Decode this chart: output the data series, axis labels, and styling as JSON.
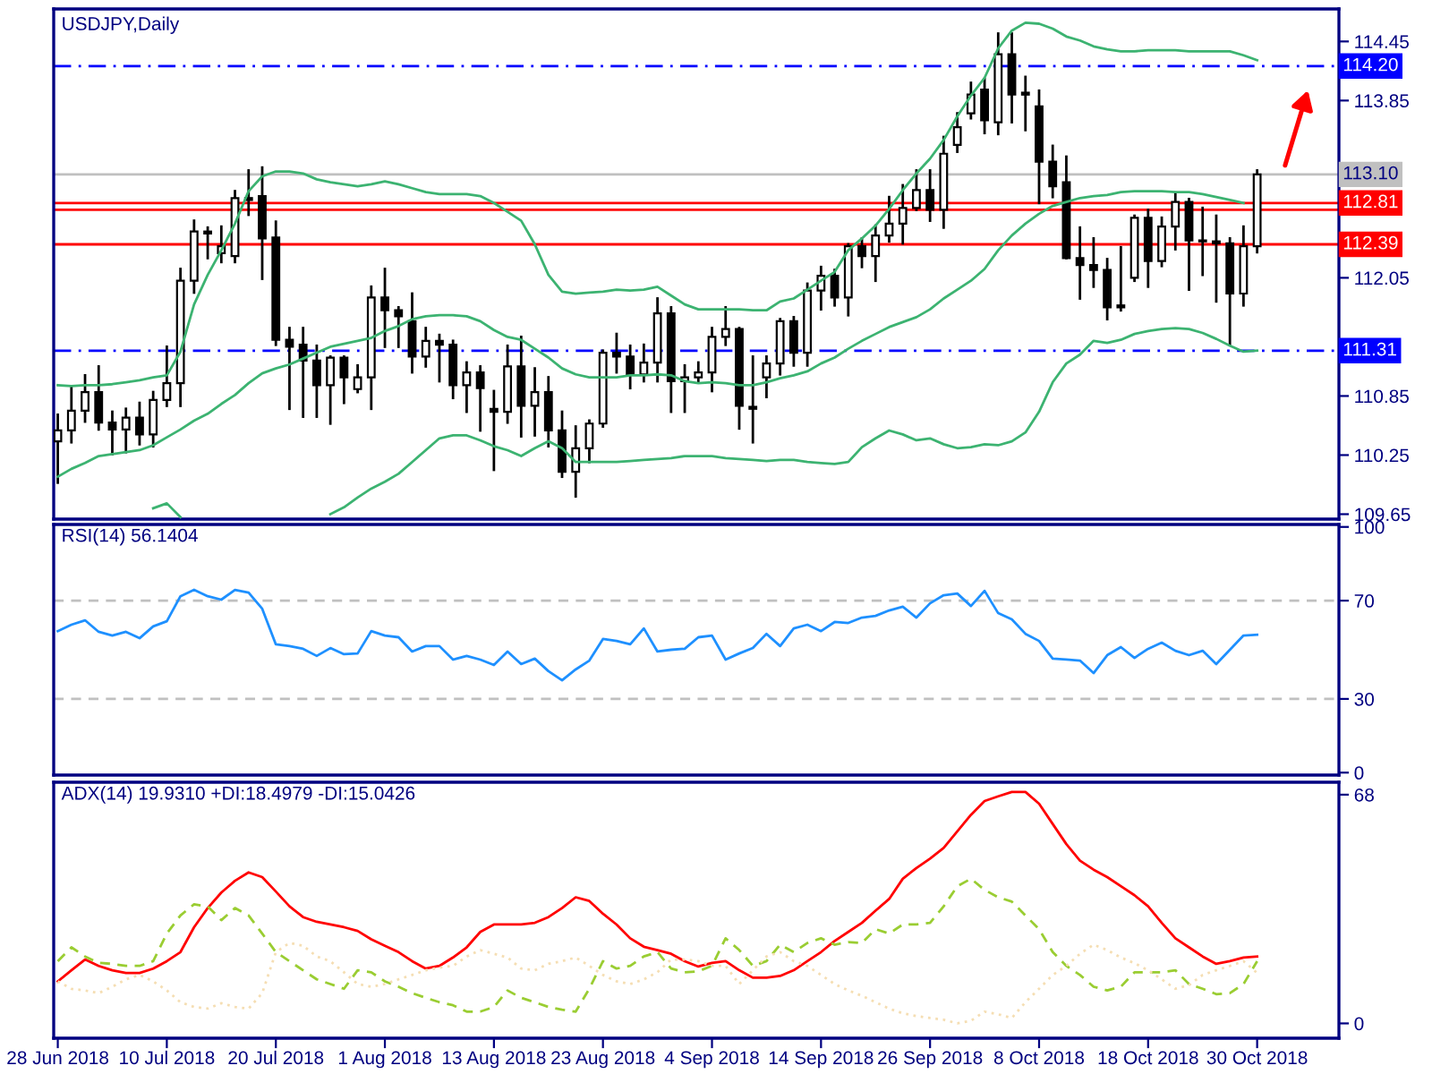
{
  "chart_data": [
    {
      "type": "candlestick",
      "title": "USDJPY,Daily",
      "ohlc": [
        [
          110.39,
          110.66,
          109.97,
          110.5
        ],
        [
          110.5,
          110.95,
          110.38,
          110.7
        ],
        [
          110.7,
          111.06,
          110.59,
          110.89
        ],
        [
          110.89,
          111.15,
          110.51,
          110.58
        ],
        [
          110.58,
          110.69,
          110.26,
          110.51
        ],
        [
          110.51,
          110.72,
          110.28,
          110.63
        ],
        [
          110.63,
          110.78,
          110.36,
          110.46
        ],
        [
          110.46,
          110.89,
          110.34,
          110.81
        ],
        [
          110.81,
          111.35,
          110.75,
          110.98
        ],
        [
          110.98,
          112.14,
          110.75,
          112.02
        ],
        [
          112.02,
          112.63,
          111.9,
          112.52
        ],
        [
          112.52,
          112.56,
          112.25,
          112.5
        ],
        [
          112.3,
          112.57,
          112.21,
          112.37
        ],
        [
          112.27,
          112.93,
          112.21,
          112.86
        ],
        [
          112.86,
          113.14,
          112.69,
          112.84
        ],
        [
          112.88,
          113.17,
          112.04,
          112.45
        ],
        [
          112.46,
          112.62,
          111.37,
          111.42
        ],
        [
          111.42,
          111.54,
          110.72,
          111.35
        ],
        [
          111.37,
          111.54,
          110.64,
          111.21
        ],
        [
          111.21,
          111.36,
          110.64,
          110.96
        ],
        [
          110.96,
          111.25,
          110.57,
          111.24
        ],
        [
          111.24,
          111.25,
          110.78,
          111.04
        ],
        [
          110.92,
          111.16,
          110.89,
          111.04
        ],
        [
          111.04,
          111.96,
          110.72,
          111.85
        ],
        [
          111.85,
          112.14,
          111.35,
          111.72
        ],
        [
          111.72,
          111.75,
          111.35,
          111.66
        ],
        [
          111.61,
          111.89,
          111.09,
          111.25
        ],
        [
          111.25,
          111.54,
          111.15,
          111.41
        ],
        [
          111.41,
          111.47,
          111.0,
          111.37
        ],
        [
          111.37,
          111.41,
          110.83,
          110.96
        ],
        [
          110.96,
          111.19,
          110.69,
          111.09
        ],
        [
          111.09,
          111.15,
          110.5,
          110.93
        ],
        [
          110.72,
          110.9,
          110.1,
          110.69
        ],
        [
          110.69,
          111.36,
          110.58,
          111.15
        ],
        [
          111.15,
          111.45,
          110.44,
          110.75
        ],
        [
          110.75,
          111.13,
          110.45,
          110.89
        ],
        [
          110.89,
          111.04,
          110.34,
          110.5
        ],
        [
          110.5,
          110.69,
          110.03,
          110.08
        ],
        [
          110.08,
          110.54,
          109.83,
          110.32
        ],
        [
          110.32,
          110.6,
          110.18,
          110.57
        ],
        [
          110.57,
          111.31,
          110.54,
          111.29
        ],
        [
          111.29,
          111.48,
          111.09,
          111.25
        ],
        [
          111.25,
          111.36,
          110.93,
          111.07
        ],
        [
          111.07,
          111.37,
          111.0,
          111.19
        ],
        [
          111.19,
          111.84,
          111.0,
          111.69
        ],
        [
          111.69,
          111.75,
          110.69,
          111.0
        ],
        [
          111.0,
          111.16,
          110.69,
          111.04
        ],
        [
          111.04,
          111.19,
          111.0,
          111.09
        ],
        [
          111.09,
          111.54,
          110.9,
          111.45
        ],
        [
          111.45,
          111.75,
          111.37,
          111.53
        ],
        [
          111.53,
          111.54,
          110.52,
          110.75
        ],
        [
          110.74,
          111.25,
          110.38,
          110.72
        ],
        [
          111.04,
          111.25,
          110.84,
          111.18
        ],
        [
          111.18,
          111.63,
          111.07,
          111.61
        ],
        [
          111.61,
          111.65,
          111.16,
          111.29
        ],
        [
          111.29,
          111.99,
          111.16,
          111.92
        ],
        [
          111.92,
          112.16,
          111.73,
          112.07
        ],
        [
          112.07,
          112.13,
          111.77,
          111.85
        ],
        [
          111.85,
          112.39,
          111.67,
          112.37
        ],
        [
          112.37,
          112.45,
          112.16,
          112.27
        ],
        [
          112.27,
          112.58,
          112.02,
          112.48
        ],
        [
          112.48,
          112.87,
          112.42,
          112.6
        ],
        [
          112.6,
          112.99,
          112.4,
          112.76
        ],
        [
          112.76,
          113.14,
          112.74,
          112.94
        ],
        [
          112.94,
          113.14,
          112.63,
          112.74
        ],
        [
          112.74,
          113.48,
          112.56,
          113.31
        ],
        [
          113.4,
          113.72,
          113.33,
          113.58
        ],
        [
          113.72,
          114.03,
          113.67,
          113.91
        ],
        [
          113.96,
          114.07,
          113.52,
          113.65
        ],
        [
          113.63,
          114.53,
          113.51,
          114.32
        ],
        [
          114.32,
          114.53,
          113.63,
          113.91
        ],
        [
          113.91,
          114.09,
          113.55,
          113.93
        ],
        [
          113.79,
          113.95,
          112.81,
          113.23
        ],
        [
          113.23,
          113.39,
          112.87,
          112.98
        ],
        [
          113.02,
          113.28,
          112.25,
          112.25
        ],
        [
          112.25,
          112.56,
          111.84,
          112.18
        ],
        [
          112.18,
          112.45,
          111.96,
          112.13
        ],
        [
          112.13,
          112.24,
          111.63,
          111.75
        ],
        [
          111.75,
          112.36,
          111.72,
          111.77
        ],
        [
          112.05,
          112.68,
          112.02,
          112.66
        ],
        [
          112.66,
          112.74,
          111.96,
          112.22
        ],
        [
          112.22,
          112.66,
          112.17,
          112.57
        ],
        [
          112.57,
          112.9,
          112.34,
          112.82
        ],
        [
          112.82,
          112.85,
          111.93,
          112.43
        ],
        [
          112.43,
          112.76,
          112.08,
          112.42
        ],
        [
          112.42,
          112.68,
          111.81,
          112.4
        ],
        [
          112.4,
          112.45,
          111.37,
          111.89
        ],
        [
          111.89,
          112.57,
          111.77,
          112.37
        ],
        [
          112.37,
          113.14,
          112.31,
          113.1
        ]
      ],
      "series": [
        {
          "type": "line",
          "color": "#3cb371",
          "values": [
            110.96,
            110.95,
            110.96,
            110.96,
            110.97,
            110.99,
            111.01,
            111.04,
            111.06,
            111.3,
            111.78,
            112.08,
            112.33,
            112.6,
            112.93,
            113.08,
            113.13,
            113.13,
            113.11,
            113.05,
            113.02,
            113.0,
            112.98,
            113.0,
            113.03,
            113.0,
            112.96,
            112.92,
            112.9,
            112.9,
            112.9,
            112.88,
            112.81,
            112.72,
            112.63,
            112.39,
            112.08,
            111.91,
            111.89,
            111.9,
            111.91,
            111.93,
            111.92,
            111.93,
            111.96,
            111.87,
            111.78,
            111.73,
            111.73,
            111.73,
            111.73,
            111.72,
            111.72,
            111.81,
            111.84,
            111.93,
            112.02,
            112.11,
            112.33,
            112.45,
            112.58,
            112.75,
            112.94,
            113.11,
            113.26,
            113.45,
            113.69,
            113.9,
            114.08,
            114.38,
            114.56,
            114.64,
            114.63,
            114.58,
            114.5,
            114.46,
            114.4,
            114.37,
            114.35,
            114.35,
            114.36,
            114.36,
            114.36,
            114.35,
            114.35,
            114.35,
            114.35,
            114.31,
            114.26
          ]
        },
        {
          "type": "line",
          "color": "#3cb371",
          "values": [
            110.03,
            110.11,
            110.17,
            110.24,
            110.26,
            110.28,
            110.3,
            110.35,
            110.43,
            110.51,
            110.6,
            110.67,
            110.77,
            110.86,
            110.98,
            111.08,
            111.13,
            111.17,
            111.23,
            111.29,
            111.35,
            111.38,
            111.41,
            111.44,
            111.51,
            111.56,
            111.63,
            111.66,
            111.67,
            111.67,
            111.66,
            111.61,
            111.52,
            111.45,
            111.42,
            111.33,
            111.24,
            111.13,
            111.07,
            111.04,
            111.04,
            111.04,
            111.06,
            111.06,
            111.07,
            111.06,
            111.0,
            110.98,
            110.99,
            110.98,
            110.96,
            110.96,
            110.99,
            111.03,
            111.06,
            111.1,
            111.18,
            111.24,
            111.33,
            111.41,
            111.48,
            111.55,
            111.6,
            111.65,
            111.73,
            111.84,
            111.93,
            112.02,
            112.14,
            112.33,
            112.48,
            112.6,
            112.7,
            112.78,
            112.82,
            112.86,
            112.88,
            112.89,
            112.92,
            112.93,
            112.93,
            112.93,
            112.92,
            112.92,
            112.9,
            112.87,
            112.84,
            112.81,
            null
          ]
        },
        {
          "type": "line",
          "color": "#3cb371",
          "values": [
            null,
            null,
            null,
            null,
            null,
            null,
            null,
            109.71,
            109.76,
            109.62,
            null,
            null,
            null,
            null,
            null,
            null,
            null,
            null,
            null,
            null,
            109.65,
            109.72,
            109.82,
            109.91,
            109.98,
            110.06,
            110.18,
            110.3,
            110.42,
            110.45,
            110.45,
            110.4,
            110.34,
            110.3,
            110.24,
            110.32,
            110.39,
            110.32,
            110.18,
            110.18,
            110.18,
            110.18,
            110.19,
            110.2,
            110.21,
            110.22,
            110.24,
            110.24,
            110.24,
            110.22,
            110.21,
            110.2,
            110.19,
            110.2,
            110.2,
            110.18,
            110.17,
            110.16,
            110.18,
            110.33,
            110.42,
            110.5,
            110.46,
            110.4,
            110.42,
            110.36,
            110.32,
            110.33,
            110.36,
            110.35,
            110.39,
            110.48,
            110.69,
            110.99,
            111.18,
            111.27,
            111.41,
            111.39,
            111.42,
            111.48,
            111.51,
            111.53,
            111.54,
            111.53,
            111.49,
            111.43,
            111.36,
            111.3,
            111.31
          ]
        }
      ],
      "ylim": [
        109.6,
        114.78
      ],
      "yticks": [
        114.45,
        113.85,
        112.05,
        110.85,
        110.25,
        109.65
      ],
      "ref_lines": [
        {
          "axis": "y",
          "value": 114.2,
          "label": "114.20",
          "color": "#0000ff",
          "line_style": "dashdot"
        },
        {
          "axis": "y",
          "value": 113.1,
          "label": "113.10",
          "color": "#c0c0c0",
          "line_style": "solid"
        },
        {
          "axis": "y",
          "value": 112.81,
          "label": "112.81",
          "color": "#ff0000",
          "line_style": "solid"
        },
        {
          "axis": "y",
          "value": 112.74,
          "color": "#ff0000",
          "line_style": "solid"
        },
        {
          "axis": "y",
          "value": 112.39,
          "label": "112.39",
          "color": "#ff0000",
          "line_style": "solid"
        },
        {
          "axis": "y",
          "value": 111.31,
          "label": "111.31",
          "color": "#0000ff",
          "line_style": "dashdot"
        }
      ],
      "tick_labels": "y"
    },
    {
      "type": "line",
      "title": "RSI(14) 56.1404",
      "series": [
        {
          "color": "#1e90ff",
          "values": [
            57.6,
            60.2,
            62.0,
            57.3,
            55.8,
            57.3,
            54.7,
            59.5,
            61.6,
            71.8,
            74.4,
            71.8,
            70.4,
            74.4,
            73.3,
            66.7,
            52.2,
            51.5,
            50.4,
            47.5,
            50.7,
            48.2,
            48.5,
            57.6,
            55.8,
            55.1,
            49.3,
            51.5,
            51.5,
            46.0,
            47.5,
            46.0,
            43.8,
            49.3,
            44.2,
            46.4,
            41.3,
            37.6,
            42.0,
            45.6,
            54.4,
            53.6,
            52.2,
            58.7,
            49.3,
            50.0,
            50.4,
            55.1,
            55.8,
            46.0,
            48.5,
            50.7,
            56.5,
            51.5,
            58.7,
            60.2,
            57.6,
            61.3,
            60.9,
            63.1,
            63.8,
            66.0,
            67.5,
            63.1,
            68.9,
            72.2,
            72.9,
            67.8,
            74.0,
            64.9,
            62.4,
            56.5,
            53.6,
            46.4,
            46.0,
            45.6,
            40.5,
            47.8,
            51.1,
            46.7,
            50.4,
            52.9,
            49.6,
            47.8,
            49.6,
            44.2,
            50.0,
            55.8,
            56.1
          ]
        }
      ],
      "ylim": [
        -1,
        101
      ],
      "yticks": [
        100,
        70,
        30,
        0
      ],
      "ref_lines": [
        {
          "axis": "y",
          "value": 70,
          "color": "#c0c0c0",
          "line_style": "dashed"
        },
        {
          "axis": "y",
          "value": 30,
          "color": "#c0c0c0",
          "line_style": "dashed"
        }
      ],
      "tick_labels": "y"
    },
    {
      "type": "line",
      "title": "ADX(14) 19.9310 +DI:18.4979 -DI:15.0426",
      "categories": [
        "28 Jun 2018",
        null,
        null,
        null,
        null,
        null,
        null,
        null,
        "10 Jul 2018",
        null,
        null,
        null,
        null,
        null,
        null,
        null,
        "20 Jul 2018",
        null,
        null,
        null,
        null,
        null,
        null,
        null,
        "1 Aug 2018",
        null,
        null,
        null,
        null,
        null,
        null,
        null,
        "13 Aug 2018",
        null,
        null,
        null,
        null,
        null,
        null,
        null,
        "23 Aug 2018",
        null,
        null,
        null,
        null,
        null,
        null,
        null,
        "4 Sep 2018",
        null,
        null,
        null,
        null,
        null,
        null,
        null,
        "14 Sep 2018",
        null,
        null,
        null,
        null,
        null,
        null,
        null,
        "26 Sep 2018",
        null,
        null,
        null,
        null,
        null,
        null,
        null,
        "8 Oct 2018",
        null,
        null,
        null,
        null,
        null,
        null,
        null,
        "18 Oct 2018",
        null,
        null,
        null,
        null,
        null,
        null,
        null,
        "30 Oct 2018"
      ],
      "series": [
        {
          "color": "#ff0000",
          "line_style": "solid",
          "values": [
            12.5,
            15.8,
            19.0,
            17.1,
            15.8,
            15.0,
            15.0,
            16.3,
            18.5,
            21.2,
            28.6,
            34.3,
            38.9,
            42.4,
            44.9,
            43.5,
            39.2,
            34.8,
            31.6,
            30.2,
            29.4,
            28.6,
            27.5,
            25.0,
            23.1,
            21.2,
            18.5,
            16.3,
            17.1,
            19.6,
            22.6,
            27.2,
            29.4,
            29.4,
            29.4,
            29.9,
            31.6,
            34.3,
            37.5,
            36.4,
            32.6,
            29.4,
            25.3,
            22.8,
            21.8,
            20.7,
            18.5,
            16.9,
            18.0,
            18.5,
            15.8,
            13.6,
            13.6,
            14.1,
            15.8,
            18.5,
            21.2,
            24.5,
            27.2,
            29.9,
            33.5,
            37.0,
            43.0,
            46.2,
            49.0,
            52.2,
            57.1,
            62.0,
            66.1,
            67.5,
            68.8,
            68.8,
            65.3,
            59.3,
            53.3,
            48.4,
            45.7,
            43.5,
            40.8,
            38.1,
            34.8,
            29.9,
            25.3,
            22.6,
            19.9,
            17.7,
            18.5,
            19.6,
            19.9
          ]
        },
        {
          "color": "#9acd32",
          "line_style": "dashed",
          "values": [
            18.5,
            22.6,
            19.9,
            18.0,
            17.7,
            17.1,
            17.1,
            18.5,
            26.7,
            32.1,
            35.4,
            34.8,
            30.7,
            34.3,
            32.1,
            26.7,
            21.2,
            18.5,
            15.8,
            13.1,
            11.7,
            10.3,
            15.8,
            15.2,
            12.5,
            10.9,
            9.0,
            7.6,
            6.3,
            5.4,
            3.5,
            3.5,
            4.9,
            9.8,
            7.6,
            6.3,
            4.9,
            4.1,
            3.5,
            10.3,
            18.5,
            16.3,
            17.1,
            19.9,
            21.2,
            16.3,
            15.2,
            15.5,
            17.1,
            25.3,
            21.8,
            17.1,
            18.5,
            23.4,
            21.2,
            23.9,
            25.3,
            23.4,
            24.2,
            23.9,
            28.0,
            26.7,
            29.4,
            29.4,
            29.9,
            34.8,
            40.8,
            43.0,
            39.7,
            37.5,
            36.2,
            32.1,
            28.0,
            21.2,
            17.1,
            14.4,
            10.9,
            9.8,
            10.9,
            15.2,
            15.2,
            15.2,
            15.8,
            11.7,
            10.3,
            8.7,
            9.0,
            11.7,
            18.5
          ]
        },
        {
          "color": "#f5deb3",
          "line_style": "dotted",
          "values": [
            12.5,
            10.3,
            9.8,
            9.0,
            10.9,
            13.1,
            14.4,
            12.5,
            9.8,
            6.3,
            4.9,
            4.4,
            6.0,
            4.9,
            4.4,
            9.0,
            21.2,
            23.9,
            23.1,
            19.9,
            18.5,
            15.2,
            11.7,
            10.9,
            11.7,
            13.1,
            14.4,
            15.8,
            16.6,
            17.1,
            19.9,
            21.8,
            20.7,
            19.6,
            16.3,
            15.8,
            17.7,
            18.5,
            19.6,
            17.1,
            14.4,
            12.5,
            11.7,
            13.1,
            15.2,
            19.0,
            19.0,
            18.5,
            17.1,
            17.1,
            11.7,
            15.8,
            19.9,
            21.2,
            18.5,
            17.1,
            14.4,
            11.7,
            9.8,
            8.2,
            6.3,
            4.4,
            3.0,
            2.2,
            1.6,
            1.1,
            0.0,
            0.8,
            3.5,
            2.7,
            1.6,
            6.3,
            10.3,
            14.4,
            17.1,
            20.7,
            23.4,
            21.8,
            19.6,
            17.9,
            15.8,
            13.1,
            10.3,
            11.4,
            14.4,
            15.8,
            17.1,
            18.5,
            15.0
          ]
        }
      ],
      "ylim": [
        -4.4,
        71.7
      ],
      "yticks": [
        68,
        0
      ]
    }
  ]
}
